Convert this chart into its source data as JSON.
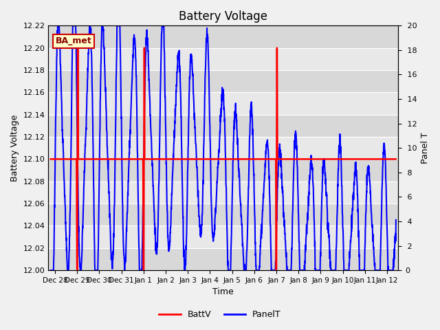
{
  "title": "Battery Voltage",
  "xlabel": "Time",
  "ylabel_left": "Battery Voltage",
  "ylabel_right": "Panel T",
  "ylim_left": [
    12.0,
    12.22
  ],
  "ylim_right": [
    0,
    20
  ],
  "yticks_left": [
    12.0,
    12.02,
    12.04,
    12.06,
    12.08,
    12.1,
    12.12,
    12.14,
    12.16,
    12.18,
    12.2,
    12.22
  ],
  "yticks_right": [
    0,
    2,
    4,
    6,
    8,
    10,
    12,
    14,
    16,
    18,
    20
  ],
  "fig_bg_color": "#f0f0f0",
  "plot_bg_color": "#e8e8e8",
  "band_color_light": "#e8e8e8",
  "band_color_dark": "#d8d8d8",
  "annotation_text": "BA_met",
  "annotation_bg": "#ffffcc",
  "annotation_border": "#cc0000",
  "legend_items": [
    "BattV",
    "PanelT"
  ],
  "batt_color": "#ff0000",
  "panel_color": "#0000ff",
  "batt_linewidth": 1.8,
  "panel_linewidth": 1.5,
  "xtick_labels": [
    "Dec 28",
    "Dec 29",
    "Dec 30",
    "Dec 31",
    "Jan 1",
    "Jan 2",
    "Jan 3",
    "Jan 4",
    "Jan 5",
    "Jan 6",
    "Jan 7",
    "Jan 8",
    "Jan 9",
    "Jan 10",
    "Jan 11",
    "Jan 12"
  ],
  "xtick_positions": [
    0,
    1,
    2,
    3,
    4,
    5,
    6,
    7,
    8,
    9,
    10,
    11,
    12,
    13,
    14,
    15
  ],
  "batt_baseline": 12.1,
  "batt_spike_centers": [
    1.0,
    4.0,
    10.0
  ],
  "batt_spike_height": 12.2,
  "xlim": [
    -0.3,
    15.5
  ]
}
